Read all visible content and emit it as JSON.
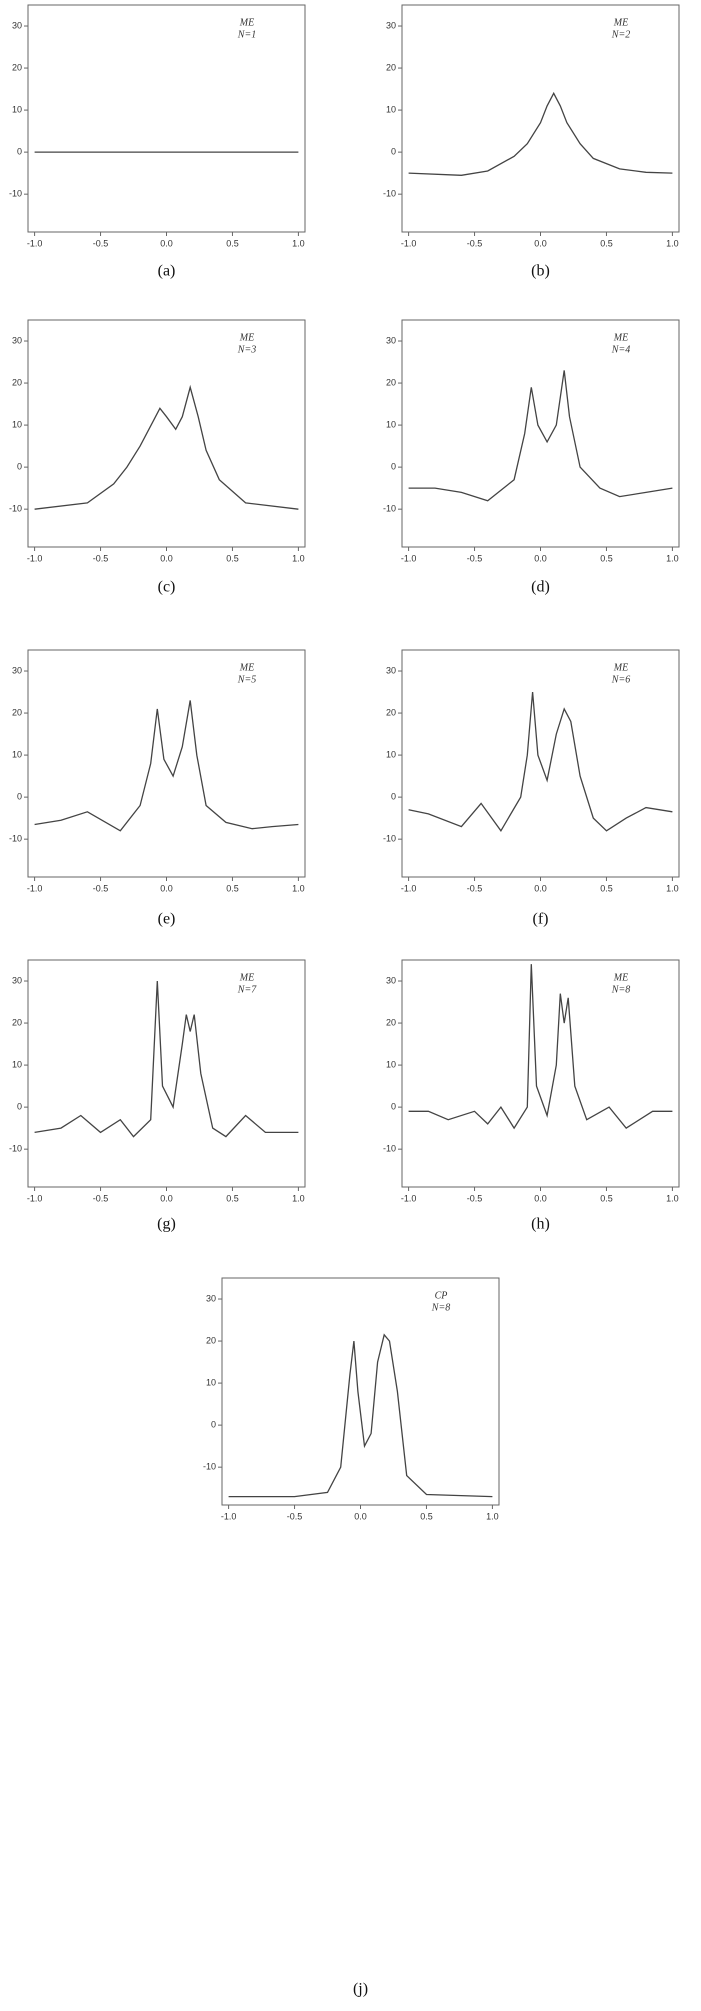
{
  "chart_data": [
    {
      "type": "line",
      "method": "ME",
      "label": "N=1",
      "caption": "(a)",
      "x": [
        -1,
        1
      ],
      "values": [
        0,
        0
      ]
    },
    {
      "type": "line",
      "method": "ME",
      "label": "N=2",
      "caption": "(b)",
      "x": [
        -1,
        -0.6,
        -0.4,
        -0.2,
        -0.1,
        0,
        0.05,
        0.1,
        0.15,
        0.2,
        0.3,
        0.4,
        0.6,
        0.8,
        1
      ],
      "values": [
        -5,
        -5.5,
        -4.5,
        -1,
        2,
        7,
        11,
        14,
        11,
        7,
        2,
        -1.5,
        -4,
        -4.8,
        -5
      ]
    },
    {
      "type": "line",
      "method": "ME",
      "label": "N=3",
      "caption": "(c)",
      "x": [
        -1,
        -0.6,
        -0.4,
        -0.3,
        -0.2,
        -0.1,
        -0.05,
        0,
        0.07,
        0.12,
        0.18,
        0.24,
        0.3,
        0.4,
        0.6,
        1
      ],
      "values": [
        -10,
        -8.5,
        -4,
        0,
        5,
        11,
        14,
        12,
        9,
        12,
        19,
        12,
        4,
        -3,
        -8.5,
        -10
      ]
    },
    {
      "type": "line",
      "method": "ME",
      "label": "N=4",
      "caption": "(d)",
      "x": [
        -1,
        -0.8,
        -0.6,
        -0.4,
        -0.2,
        -0.12,
        -0.07,
        -0.02,
        0.05,
        0.12,
        0.18,
        0.22,
        0.3,
        0.45,
        0.6,
        0.8,
        1
      ],
      "values": [
        -5,
        -5,
        -6,
        -8,
        -3,
        8,
        19,
        10,
        6,
        10,
        23,
        12,
        0,
        -5,
        -7,
        -6,
        -5
      ]
    },
    {
      "type": "line",
      "method": "ME",
      "label": "N=5",
      "caption": "(e)",
      "x": [
        -1,
        -0.8,
        -0.6,
        -0.35,
        -0.2,
        -0.12,
        -0.07,
        -0.02,
        0.05,
        0.12,
        0.18,
        0.23,
        0.3,
        0.45,
        0.65,
        0.8,
        1
      ],
      "values": [
        -6.5,
        -5.5,
        -3.5,
        -8,
        -2,
        8,
        21,
        9,
        5,
        12,
        23,
        10,
        -2,
        -6,
        -7.5,
        -7,
        -6.5
      ]
    },
    {
      "type": "line",
      "method": "ME",
      "label": "N=6",
      "caption": "(f)",
      "x": [
        -1,
        -0.85,
        -0.6,
        -0.45,
        -0.3,
        -0.15,
        -0.1,
        -0.06,
        -0.02,
        0.05,
        0.12,
        0.18,
        0.23,
        0.3,
        0.4,
        0.5,
        0.65,
        0.8,
        1
      ],
      "values": [
        -3,
        -4,
        -7,
        -1.5,
        -8,
        0,
        10,
        25,
        10,
        4,
        15,
        21,
        18,
        5,
        -5,
        -8,
        -5,
        -2.5,
        -3.5
      ]
    },
    {
      "type": "line",
      "method": "ME",
      "label": "N=7",
      "caption": "(g)",
      "x": [
        -1,
        -0.8,
        -0.65,
        -0.5,
        -0.35,
        -0.25,
        -0.12,
        -0.07,
        -0.03,
        0.05,
        0.12,
        0.15,
        0.18,
        0.21,
        0.26,
        0.35,
        0.45,
        0.6,
        0.75,
        1
      ],
      "values": [
        -6,
        -5,
        -2,
        -6,
        -3,
        -7,
        -3,
        30,
        5,
        0,
        15,
        22,
        18,
        22,
        8,
        -5,
        -7,
        -2,
        -6,
        -6
      ]
    },
    {
      "type": "line",
      "method": "ME",
      "label": "N=8",
      "caption": "(h)",
      "x": [
        -1,
        -0.85,
        -0.7,
        -0.5,
        -0.4,
        -0.3,
        -0.2,
        -0.1,
        -0.07,
        -0.03,
        0.05,
        0.12,
        0.15,
        0.18,
        0.21,
        0.26,
        0.35,
        0.52,
        0.65,
        0.85,
        1
      ],
      "values": [
        -1,
        -1,
        -3,
        -1,
        -4,
        0,
        -5,
        0,
        34,
        5,
        -2,
        10,
        27,
        20,
        26,
        5,
        -3,
        0,
        -5,
        -1,
        -1
      ]
    },
    {
      "type": "line",
      "method": "CP",
      "label": "N=8",
      "caption": "(j)",
      "x": [
        -1,
        -0.5,
        -0.25,
        -0.15,
        -0.08,
        -0.05,
        -0.02,
        0.03,
        0.08,
        0.13,
        0.18,
        0.22,
        0.28,
        0.35,
        0.5,
        1
      ],
      "values": [
        -17,
        -17,
        -16,
        -10,
        12,
        20,
        8,
        -5,
        -2,
        15,
        21.5,
        20,
        8,
        -12,
        -16.5,
        -17
      ]
    }
  ],
  "axes": {
    "xlim": [
      -1.05,
      1.05
    ],
    "ylim": [
      -19,
      35
    ],
    "xticks": [
      {
        "value": -1,
        "label": "-1.0"
      },
      -0.5,
      {
        "value": 0,
        "label": "0.0"
      },
      0.5,
      {
        "value": 1,
        "label": "1.0"
      }
    ],
    "yticks": [
      -10,
      0,
      10,
      20,
      30
    ],
    "color": "#444"
  }
}
